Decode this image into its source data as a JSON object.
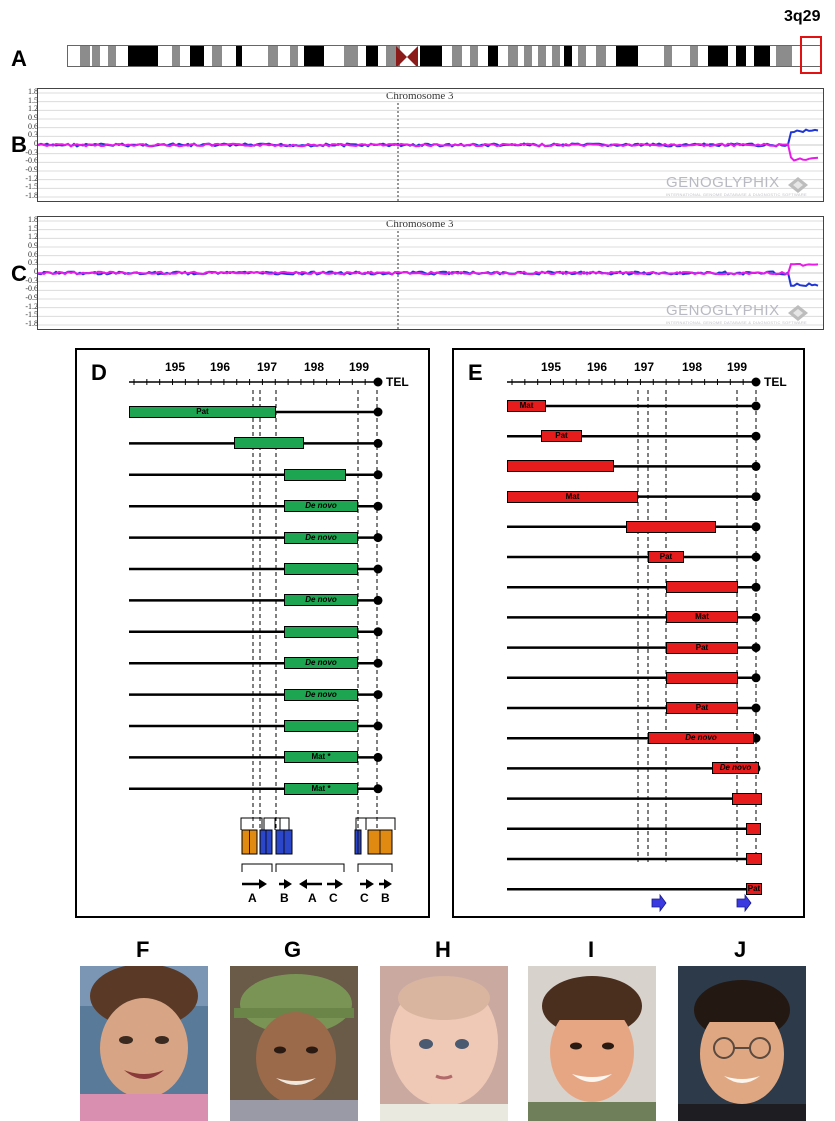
{
  "panel_labels": {
    "a": "A",
    "b": "B",
    "c": "C",
    "d": "D",
    "e": "E",
    "f": "F",
    "g": "G",
    "h": "H",
    "i": "I",
    "j": "J"
  },
  "ideogram": {
    "highlight_label": "3q29"
  },
  "cnv_plots": {
    "title": "Chromosome 3",
    "y_ticks": [
      "1.8",
      "1.5",
      "1.2",
      "0.9",
      "0.6",
      "0.3",
      "0",
      "-0.3",
      "-0.6",
      "-0.9",
      "-1.2",
      "-1.5",
      "-1.8"
    ],
    "brand_main": "GENOGLYPHIX",
    "brand_sub": "INTERNATIONAL GENOME DATABASE & DIAGNOSTIC SOFTWARE",
    "series_colors": {
      "blue": "#1f35d6",
      "magenta": "#e81ce8"
    }
  },
  "panel_d": {
    "axis_ticks": [
      "195",
      "196",
      "197",
      "198",
      "199"
    ],
    "tel_label": "TEL",
    "rows": [
      {
        "text": "Pat",
        "italic": false
      },
      {
        "text": "",
        "italic": false
      },
      {
        "text": "",
        "italic": false
      },
      {
        "text": "De novo",
        "italic": true
      },
      {
        "text": "De novo",
        "italic": true
      },
      {
        "text": "",
        "italic": false
      },
      {
        "text": "De novo",
        "italic": true
      },
      {
        "text": "",
        "italic": false
      },
      {
        "text": "De novo",
        "italic": true
      },
      {
        "text": "De novo",
        "italic": true
      },
      {
        "text": "",
        "italic": false
      },
      {
        "text": "Mat *",
        "italic": false
      },
      {
        "text": "Mat *",
        "italic": false
      }
    ],
    "segment_labels": [
      "A",
      "B",
      "A",
      "C",
      "C",
      "B"
    ],
    "colors": {
      "bar": "#1ea552",
      "orange": "#e08a12",
      "blue": "#2b46c8"
    }
  },
  "panel_e": {
    "axis_ticks": [
      "195",
      "196",
      "197",
      "198",
      "199"
    ],
    "tel_label": "TEL",
    "rows": [
      {
        "text": "Mat",
        "italic": false
      },
      {
        "text": "Pat",
        "italic": false
      },
      {
        "text": "",
        "italic": false
      },
      {
        "text": "Mat",
        "italic": false
      },
      {
        "text": "",
        "italic": false
      },
      {
        "text": "Pat",
        "italic": false
      },
      {
        "text": "",
        "italic": false
      },
      {
        "text": "Mat",
        "italic": false
      },
      {
        "text": "Pat",
        "italic": false
      },
      {
        "text": "",
        "italic": false
      },
      {
        "text": "Pat",
        "italic": false
      },
      {
        "text": "De novo",
        "italic": true
      },
      {
        "text": "De novo",
        "italic": true
      },
      {
        "text": "",
        "italic": false
      },
      {
        "text": "",
        "italic": false
      },
      {
        "text": "",
        "italic": false
      },
      {
        "text": "Pat",
        "italic": false
      }
    ],
    "colors": {
      "bar": "#e61b1b",
      "arrow": "#3a3ae0"
    }
  }
}
